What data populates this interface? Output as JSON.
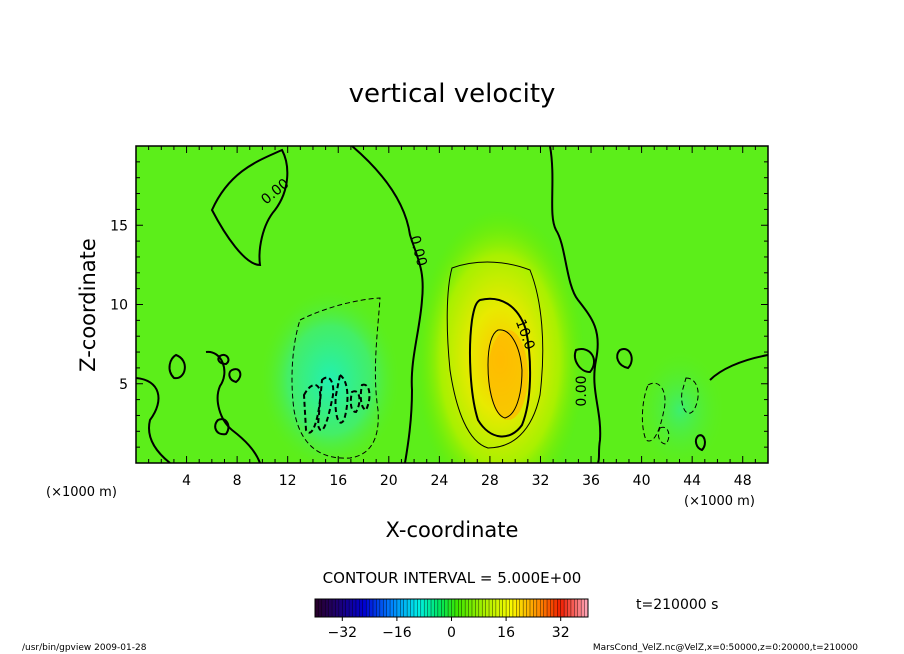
{
  "chart_data": {
    "type": "heatmap",
    "title": "vertical velocity",
    "xlabel": "X-coordinate",
    "ylabel": "Z-coordinate",
    "x_unit": "(×1000 m)",
    "y_unit": "(×1000 m)",
    "xlim": [
      0,
      50
    ],
    "ylim": [
      0,
      20
    ],
    "x_ticks": [
      4,
      8,
      12,
      16,
      20,
      24,
      28,
      32,
      36,
      40,
      44,
      48
    ],
    "y_ticks": [
      5,
      10,
      15
    ],
    "contour_interval_text": "CONTOUR INTERVAL = 5.000E+00",
    "contour_labels": [
      {
        "text": "0.00",
        "x": 11.0,
        "y": 17.0
      },
      {
        "text": "0.00",
        "x": 22.0,
        "y": 13.2
      },
      {
        "text": "10.0",
        "x": 30.3,
        "y": 8.0
      },
      {
        "text": "0.00",
        "x": 35.0,
        "y": 4.5
      }
    ],
    "features": [
      {
        "kind": "updraft",
        "center_x": 29.5,
        "center_z": 6,
        "max": 20
      },
      {
        "kind": "downdraft",
        "center_x": 15,
        "center_z": 4,
        "min": -15
      },
      {
        "kind": "downdraft",
        "center_x": 43,
        "center_z": 3,
        "min": -8
      }
    ],
    "colorbar": {
      "range": [
        -40,
        40
      ],
      "ticks": [
        -32,
        -16,
        0,
        16,
        32
      ]
    },
    "time_text": "t=210000  s"
  },
  "footer": {
    "left": "/usr/bin/gpview  2009-01-28",
    "right": "MarsCond_VelZ.nc@VelZ,x=0:50000,z=0:20000,t=210000"
  }
}
